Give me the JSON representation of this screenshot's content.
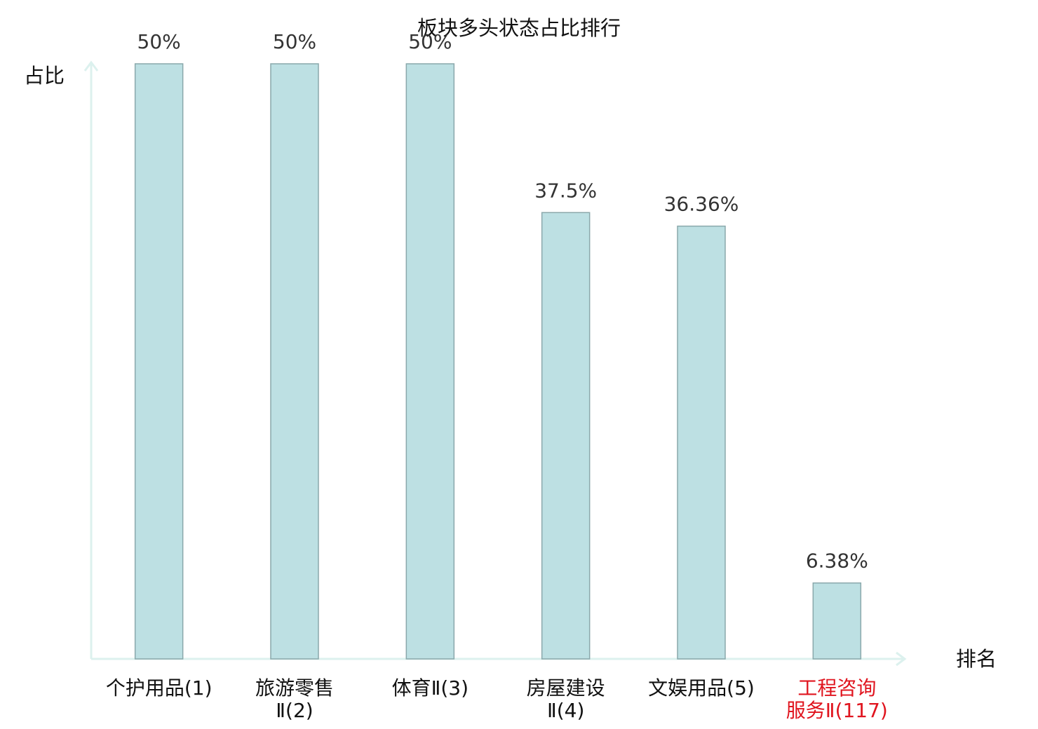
{
  "chart_data": {
    "type": "bar",
    "title": "板块多头状态占比排行",
    "y_label": "占比",
    "x_label": "排名",
    "categories": [
      [
        "个护用品(1)"
      ],
      [
        "旅游零售",
        "Ⅱ(2)"
      ],
      [
        "体育Ⅱ(3)"
      ],
      [
        "房屋建设",
        "Ⅱ(4)"
      ],
      [
        "文娱用品(5)"
      ],
      [
        "工程咨询",
        "服务Ⅱ(117)"
      ]
    ],
    "category_colors": [
      "#111111",
      "#111111",
      "#111111",
      "#111111",
      "#111111",
      "#e0141e"
    ],
    "values": [
      50,
      50,
      50,
      37.5,
      36.36,
      6.38
    ],
    "value_labels": [
      "50%",
      "50%",
      "50%",
      "37.5%",
      "36.36%",
      "6.38%"
    ],
    "color": "#bde0e3",
    "edge_color": "#8aa8ab",
    "axis_color": "#dcf1ee",
    "ylim": [
      0,
      50
    ]
  }
}
